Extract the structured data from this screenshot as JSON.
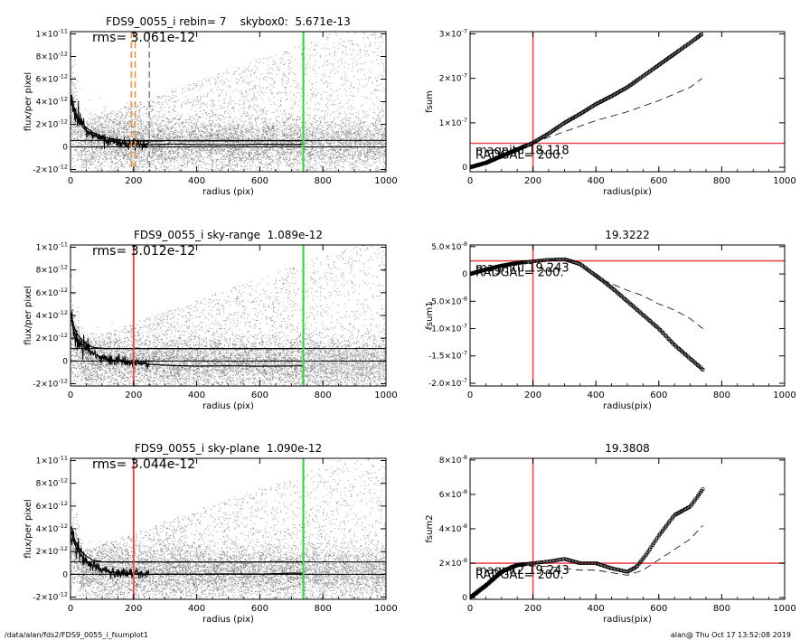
{
  "footer": {
    "path": "/data/alan/fds2/FDS9_0055_i_fsumplot1",
    "stamp": "alan@  Thu Oct 17 13:52:08 2019"
  },
  "colors": {
    "red": "#e8484e",
    "green": "#44d044",
    "orange": "#e29550",
    "scatter_gray": "#a8a8a8",
    "scatter_dark": "#3a3a3a",
    "axis": "#000000"
  },
  "chart_data": [
    {
      "type": "scatter",
      "title": "FDS9_0055_i rebin= 7    skybox0:  5.671e-13",
      "xlabel": "radius (pix)",
      "ylabel": "flux/per pixel",
      "xlim": [
        0,
        1000
      ],
      "ylim": [
        -2.2e-12,
        1.02e-11
      ],
      "xticks": [
        0,
        200,
        400,
        600,
        800,
        1000
      ],
      "xtick_labels": [
        "0",
        "200",
        "400",
        "600",
        "800",
        "1000"
      ],
      "yticks": [
        -2e-12,
        0,
        2e-12,
        4e-12,
        6e-12,
        8e-12,
        1e-11
      ],
      "ytick_mant": [
        "-2×10",
        "0",
        "2×10",
        "4×10",
        "6×10",
        "8×10",
        "1×10"
      ],
      "ytick_exp": [
        "-12",
        "",
        "-12",
        "-12",
        "-12",
        "-12",
        "-11"
      ],
      "annotation": "rms= 3.061e-12",
      "vlines": [
        {
          "x": 193,
          "color": "orange",
          "style": "dashed"
        },
        {
          "x": 205,
          "color": "orange",
          "style": "dashed"
        },
        {
          "x": 250,
          "color": "#888888",
          "style": "dashed"
        },
        {
          "x": 738,
          "color": "green",
          "style": "solid"
        }
      ],
      "hlines": [
        {
          "y": 5.671e-13,
          "color": "#000000"
        },
        {
          "y": 0,
          "color": "#000000"
        }
      ],
      "profile": {
        "x": [
          3,
          10,
          20,
          35,
          50,
          70,
          100,
          130,
          170,
          200,
          260,
          320,
          400,
          500,
          600,
          700,
          738
        ],
        "y": [
          4.2e-12,
          3.2e-12,
          2.5e-12,
          1.9e-12,
          1.4e-12,
          1.1e-12,
          7e-13,
          5e-13,
          3e-13,
          2.5e-13,
          2e-13,
          2.6e-13,
          2.2e-13,
          1.8e-13,
          2.4e-13,
          2.1e-13,
          2.3e-13
        ]
      },
      "profile2": {
        "x": [
          3,
          10,
          20,
          35,
          50,
          70,
          100,
          130,
          170,
          200,
          260,
          320,
          400,
          500,
          600,
          700,
          738
        ],
        "y": [
          4.6e-12,
          3.6e-12,
          2.8e-12,
          2.1e-12,
          1.7e-12,
          1.3e-12,
          9e-13,
          7e-13,
          5.5e-13,
          5e-13,
          5.2e-13,
          5.6e-13,
          5.4e-13,
          5.3e-13,
          5.5e-13,
          5.4e-13,
          5.5e-13
        ]
      },
      "scatter_model": {
        "center": 2e-13,
        "sigma": 1.2e-12,
        "spread_max": 1.1e-11
      }
    },
    {
      "type": "line",
      "title": "",
      "xlabel": "radius(pix)",
      "ylabel": "fsum",
      "xlim": [
        0,
        1000
      ],
      "ylim": [
        -1e-08,
        3.05e-07
      ],
      "xticks": [
        0,
        200,
        400,
        600,
        800,
        1000
      ],
      "xtick_labels": [
        "0",
        "200",
        "400",
        "600",
        "800",
        "1000"
      ],
      "yticks": [
        0,
        1e-07,
        2e-07,
        3e-07
      ],
      "ytick_mant": [
        "0",
        "1×10",
        "2×10",
        "3×10"
      ],
      "ytick_exp": [
        "",
        "-7",
        "-7",
        "-7"
      ],
      "text_labels": [
        "magnitu  18.118",
        "RADGAL=   200."
      ],
      "vlines": [
        {
          "x": 200,
          "color": "red"
        }
      ],
      "hlines": [
        {
          "y": 5.4e-08,
          "color": "red"
        }
      ],
      "series": [
        {
          "x": [
            0,
            50,
            100,
            150,
            200,
            250,
            300,
            350,
            400,
            450,
            500,
            550,
            600,
            650,
            700,
            738
          ],
          "y": [
            0,
            1e-08,
            2.5e-08,
            4e-08,
            5.5e-08,
            7.6e-08,
            1e-07,
            1.2e-07,
            1.42e-07,
            1.6e-07,
            1.8e-07,
            2.05e-07,
            2.3e-07,
            2.55e-07,
            2.8e-07,
            3e-07
          ]
        },
        {
          "x": [
            200,
            300,
            400,
            500,
            600,
            700,
            738
          ],
          "y": [
            5.5e-08,
            8e-08,
            1.05e-07,
            1.25e-07,
            1.5e-07,
            1.8e-07,
            2e-07
          ]
        }
      ]
    },
    {
      "type": "scatter",
      "title": "FDS9_0055_i sky-range  1.089e-12",
      "xlabel": "radius (pix)",
      "ylabel": "flux/per pixel",
      "xlim": [
        0,
        1000
      ],
      "ylim": [
        -2.2e-12,
        1.02e-11
      ],
      "xticks": [
        0,
        200,
        400,
        600,
        800,
        1000
      ],
      "xtick_labels": [
        "0",
        "200",
        "400",
        "600",
        "800",
        "1000"
      ],
      "yticks": [
        -2e-12,
        0,
        2e-12,
        4e-12,
        6e-12,
        8e-12,
        1e-11
      ],
      "ytick_mant": [
        "-2×10",
        "0",
        "2×10",
        "4×10",
        "6×10",
        "8×10",
        "1×10"
      ],
      "ytick_exp": [
        "-12",
        "",
        "-12",
        "-12",
        "-12",
        "-12",
        "-11"
      ],
      "annotation": "rms= 3.012e-12",
      "vlines": [
        {
          "x": 200,
          "color": "red",
          "style": "solid"
        },
        {
          "x": 738,
          "color": "green",
          "style": "solid"
        }
      ],
      "hlines": [
        {
          "y": 1.089e-12,
          "color": "#000000"
        },
        {
          "y": 0,
          "color": "#000000"
        }
      ],
      "profile": {
        "x": [
          3,
          10,
          20,
          35,
          50,
          70,
          100,
          130,
          170,
          200,
          260,
          320,
          400,
          500,
          600,
          700,
          738
        ],
        "y": [
          3.6e-12,
          2.7e-12,
          2e-12,
          1.5e-12,
          1.1e-12,
          7e-13,
          3e-13,
          1e-13,
          -1e-13,
          -2e-13,
          -3e-13,
          -4e-13,
          -4.5e-13,
          -4.2e-13,
          -4.6e-13,
          -4.4e-13,
          -4.3e-13
        ]
      },
      "profile2": {
        "x": [
          3,
          10,
          20,
          35,
          50,
          70,
          100,
          130,
          170,
          200,
          260,
          320,
          400,
          500,
          600,
          700,
          738
        ],
        "y": [
          4e-12,
          3.1e-12,
          2.4e-12,
          1.9e-12,
          1.5e-12,
          1.2e-12,
          1.1e-12,
          1.09e-12,
          1.09e-12,
          1.09e-12,
          1.09e-12,
          1.09e-12,
          1.09e-12,
          1.09e-12,
          1.09e-12,
          1.09e-12,
          1.09e-12
        ]
      },
      "scatter_model": {
        "center": -3e-13,
        "sigma": 1.2e-12,
        "spread_max": 1.1e-11
      }
    },
    {
      "type": "line",
      "title": "19.3222",
      "xlabel": "radius(pix)",
      "ylabel": "fsum1",
      "xlim": [
        0,
        1000
      ],
      "ylim": [
        -2.05e-07,
        5.3e-08
      ],
      "xticks": [
        0,
        200,
        400,
        600,
        800,
        1000
      ],
      "xtick_labels": [
        "0",
        "200",
        "400",
        "600",
        "800",
        "1000"
      ],
      "yticks": [
        -2e-07,
        -1.5e-07,
        -1e-07,
        -5e-08,
        0,
        5e-08
      ],
      "ytick_mant": [
        "-2.0×10",
        "-1.5×10",
        "-1.0×10",
        "-5.0×10",
        "0",
        "5.0×10"
      ],
      "ytick_exp": [
        "-7",
        "-7",
        "-7",
        "-8",
        "",
        "-8"
      ],
      "text_labels": [
        "magnitu  19.243",
        "RADGAL=   200."
      ],
      "vlines": [
        {
          "x": 200,
          "color": "red"
        }
      ],
      "hlines": [
        {
          "y": 2.4e-08,
          "color": "red"
        }
      ],
      "series": [
        {
          "x": [
            0,
            50,
            100,
            150,
            200,
            250,
            300,
            350,
            400,
            450,
            500,
            550,
            600,
            650,
            700,
            740
          ],
          "y": [
            0,
            8e-09,
            1.5e-08,
            2e-08,
            2.3e-08,
            2.6e-08,
            2.7e-08,
            1.8e-08,
            -3e-09,
            -2.5e-08,
            -5e-08,
            -7.5e-08,
            -1e-07,
            -1.3e-07,
            -1.55e-07,
            -1.75e-07
          ]
        },
        {
          "x": [
            250,
            300,
            350,
            400,
            450,
            500,
            550,
            600,
            650,
            700,
            740
          ],
          "y": [
            2.6e-08,
            2.5e-08,
            1.5e-08,
            -5e-09,
            -1.8e-08,
            -3e-08,
            -4e-08,
            -5.5e-08,
            -6.6e-08,
            -8.2e-08,
            -1e-07
          ]
        }
      ]
    },
    {
      "type": "scatter",
      "title": "FDS9_0055_i sky-plane  1.090e-12",
      "xlabel": "radius (pix)",
      "ylabel": "flux/per pixel",
      "xlim": [
        0,
        1000
      ],
      "ylim": [
        -2.2e-12,
        1.02e-11
      ],
      "xticks": [
        0,
        200,
        400,
        600,
        800,
        1000
      ],
      "xtick_labels": [
        "0",
        "200",
        "400",
        "600",
        "800",
        "1000"
      ],
      "yticks": [
        -2e-12,
        0,
        2e-12,
        4e-12,
        6e-12,
        8e-12,
        1e-11
      ],
      "ytick_mant": [
        "-2×10",
        "0",
        "2×10",
        "4×10",
        "6×10",
        "8×10",
        "1×10"
      ],
      "ytick_exp": [
        "-12",
        "",
        "-12",
        "-12",
        "-12",
        "-12",
        "-11"
      ],
      "annotation": "rms= 3.044e-12",
      "vlines": [
        {
          "x": 200,
          "color": "red",
          "style": "solid"
        },
        {
          "x": 738,
          "color": "green",
          "style": "solid"
        }
      ],
      "hlines": [
        {
          "y": 1.09e-12,
          "color": "#000000"
        },
        {
          "y": 0,
          "color": "#000000"
        }
      ],
      "profile": {
        "x": [
          3,
          10,
          20,
          35,
          50,
          70,
          100,
          130,
          170,
          200,
          260,
          320,
          400,
          500,
          600,
          700,
          738
        ],
        "y": [
          3.8e-12,
          2.9e-12,
          2.2e-12,
          1.6e-12,
          1.2e-12,
          8e-13,
          4e-13,
          2e-13,
          1e-13,
          5e-14,
          0,
          2e-14,
          1e-14,
          3e-14,
          2e-14,
          1e-13,
          1e-13
        ]
      },
      "profile2": {
        "x": [
          3,
          10,
          20,
          35,
          50,
          70,
          100,
          130,
          170,
          200,
          260,
          320,
          400,
          500,
          600,
          700,
          738
        ],
        "y": [
          4.2e-12,
          3.3e-12,
          2.6e-12,
          2e-12,
          1.6e-12,
          1.25e-12,
          1.1e-12,
          1.09e-12,
          1.09e-12,
          1.09e-12,
          1.09e-12,
          1.09e-12,
          1.09e-12,
          1.09e-12,
          1.09e-12,
          1.09e-12,
          1.09e-12
        ]
      },
      "scatter_model": {
        "center": 0,
        "sigma": 1.2e-12,
        "spread_max": 1.1e-11
      }
    },
    {
      "type": "line",
      "title": "19.3808",
      "xlabel": "radius(pix)",
      "ylabel": "fsum2",
      "xlim": [
        0,
        1000
      ],
      "ylim": [
        -1e-09,
        8.1e-08
      ],
      "xticks": [
        0,
        200,
        400,
        600,
        800,
        1000
      ],
      "xtick_labels": [
        "0",
        "200",
        "400",
        "600",
        "800",
        "1000"
      ],
      "yticks": [
        0,
        2e-08,
        4e-08,
        6e-08,
        8e-08
      ],
      "ytick_mant": [
        "0",
        "2×10",
        "4×10",
        "6×10",
        "8×10"
      ],
      "ytick_exp": [
        "",
        "-8",
        "-8",
        "-8",
        "-8"
      ],
      "text_labels": [
        "magnit2  19.243",
        "RADGAL=   200."
      ],
      "vlines": [
        {
          "x": 200,
          "color": "red"
        }
      ],
      "hlines": [
        {
          "y": 2e-08,
          "color": "red"
        }
      ],
      "series": [
        {
          "x": [
            0,
            50,
            100,
            150,
            200,
            250,
            300,
            350,
            400,
            450,
            500,
            530,
            560,
            600,
            650,
            700,
            740
          ],
          "y": [
            0,
            7e-09,
            1.5e-08,
            1.9e-08,
            2e-08,
            2.1e-08,
            2.25e-08,
            2e-08,
            2e-08,
            1.7e-08,
            1.5e-08,
            1.8e-08,
            2.5e-08,
            3.6e-08,
            4.8e-08,
            5.3e-08,
            6.3e-08
          ]
        },
        {
          "x": [
            150,
            200,
            250,
            300,
            350,
            400,
            450,
            500,
            550,
            600,
            650,
            700,
            740
          ],
          "y": [
            1.8e-08,
            1.85e-08,
            1.8e-08,
            1.7e-08,
            1.6e-08,
            1.6e-08,
            1.45e-08,
            1.3e-08,
            1.6e-08,
            2.2e-08,
            2.8e-08,
            3.4e-08,
            4.2e-08
          ]
        }
      ]
    }
  ]
}
